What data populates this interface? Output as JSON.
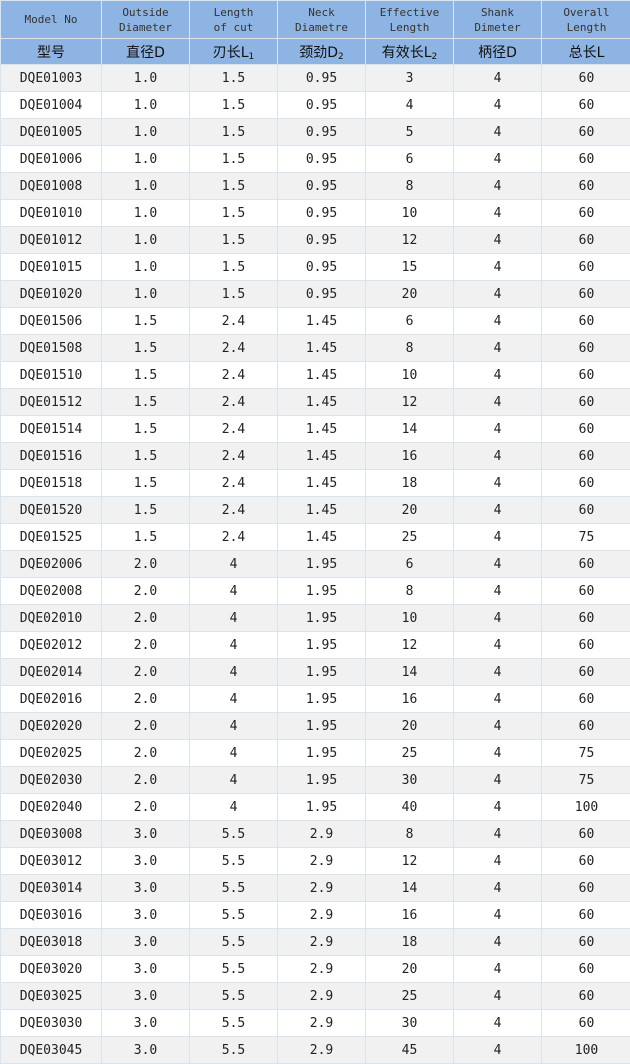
{
  "table": {
    "headers_en": [
      "Model No",
      "Outside\nDiameter",
      "Length\nof cut",
      "Neck\nDiametre",
      "Effective\nLength",
      "Shank\nDimeter",
      "Overall\nLength"
    ],
    "headers_cn": [
      {
        "t": "型号",
        "s": ""
      },
      {
        "t": "直径D",
        "s": ""
      },
      {
        "t": "刃长L",
        "s": "1"
      },
      {
        "t": "颈劲D",
        "s": "2"
      },
      {
        "t": "有效长L",
        "s": "2"
      },
      {
        "t": "柄径D",
        "s": ""
      },
      {
        "t": "总长L",
        "s": ""
      }
    ],
    "header_bg": "#8eb4e3",
    "rows": [
      [
        "DQE01003",
        "1.0",
        "1.5",
        "0.95",
        "3",
        "4",
        "60"
      ],
      [
        "DQE01004",
        "1.0",
        "1.5",
        "0.95",
        "4",
        "4",
        "60"
      ],
      [
        "DQE01005",
        "1.0",
        "1.5",
        "0.95",
        "5",
        "4",
        "60"
      ],
      [
        "DQE01006",
        "1.0",
        "1.5",
        "0.95",
        "6",
        "4",
        "60"
      ],
      [
        "DQE01008",
        "1.0",
        "1.5",
        "0.95",
        "8",
        "4",
        "60"
      ],
      [
        "DQE01010",
        "1.0",
        "1.5",
        "0.95",
        "10",
        "4",
        "60"
      ],
      [
        "DQE01012",
        "1.0",
        "1.5",
        "0.95",
        "12",
        "4",
        "60"
      ],
      [
        "DQE01015",
        "1.0",
        "1.5",
        "0.95",
        "15",
        "4",
        "60"
      ],
      [
        "DQE01020",
        "1.0",
        "1.5",
        "0.95",
        "20",
        "4",
        "60"
      ],
      [
        "DQE01506",
        "1.5",
        "2.4",
        "1.45",
        "6",
        "4",
        "60"
      ],
      [
        "DQE01508",
        "1.5",
        "2.4",
        "1.45",
        "8",
        "4",
        "60"
      ],
      [
        "DQE01510",
        "1.5",
        "2.4",
        "1.45",
        "10",
        "4",
        "60"
      ],
      [
        "DQE01512",
        "1.5",
        "2.4",
        "1.45",
        "12",
        "4",
        "60"
      ],
      [
        "DQE01514",
        "1.5",
        "2.4",
        "1.45",
        "14",
        "4",
        "60"
      ],
      [
        "DQE01516",
        "1.5",
        "2.4",
        "1.45",
        "16",
        "4",
        "60"
      ],
      [
        "DQE01518",
        "1.5",
        "2.4",
        "1.45",
        "18",
        "4",
        "60"
      ],
      [
        "DQE01520",
        "1.5",
        "2.4",
        "1.45",
        "20",
        "4",
        "60"
      ],
      [
        "DQE01525",
        "1.5",
        "2.4",
        "1.45",
        "25",
        "4",
        "75"
      ],
      [
        "DQE02006",
        "2.0",
        "4",
        "1.95",
        "6",
        "4",
        "60"
      ],
      [
        "DQE02008",
        "2.0",
        "4",
        "1.95",
        "8",
        "4",
        "60"
      ],
      [
        "DQE02010",
        "2.0",
        "4",
        "1.95",
        "10",
        "4",
        "60"
      ],
      [
        "DQE02012",
        "2.0",
        "4",
        "1.95",
        "12",
        "4",
        "60"
      ],
      [
        "DQE02014",
        "2.0",
        "4",
        "1.95",
        "14",
        "4",
        "60"
      ],
      [
        "DQE02016",
        "2.0",
        "4",
        "1.95",
        "16",
        "4",
        "60"
      ],
      [
        "DQE02020",
        "2.0",
        "4",
        "1.95",
        "20",
        "4",
        "60"
      ],
      [
        "DQE02025",
        "2.0",
        "4",
        "1.95",
        "25",
        "4",
        "75"
      ],
      [
        "DQE02030",
        "2.0",
        "4",
        "1.95",
        "30",
        "4",
        "75"
      ],
      [
        "DQE02040",
        "2.0",
        "4",
        "1.95",
        "40",
        "4",
        "100"
      ],
      [
        "DQE03008",
        "3.0",
        "5.5",
        "2.9",
        "8",
        "4",
        "60"
      ],
      [
        "DQE03012",
        "3.0",
        "5.5",
        "2.9",
        "12",
        "4",
        "60"
      ],
      [
        "DQE03014",
        "3.0",
        "5.5",
        "2.9",
        "14",
        "4",
        "60"
      ],
      [
        "DQE03016",
        "3.0",
        "5.5",
        "2.9",
        "16",
        "4",
        "60"
      ],
      [
        "DQE03018",
        "3.0",
        "5.5",
        "2.9",
        "18",
        "4",
        "60"
      ],
      [
        "DQE03020",
        "3.0",
        "5.5",
        "2.9",
        "20",
        "4",
        "60"
      ],
      [
        "DQE03025",
        "3.0",
        "5.5",
        "2.9",
        "25",
        "4",
        "60"
      ],
      [
        "DQE03030",
        "3.0",
        "5.5",
        "2.9",
        "30",
        "4",
        "60"
      ],
      [
        "DQE03045",
        "3.0",
        "5.5",
        "2.9",
        "45",
        "4",
        "100"
      ]
    ]
  }
}
